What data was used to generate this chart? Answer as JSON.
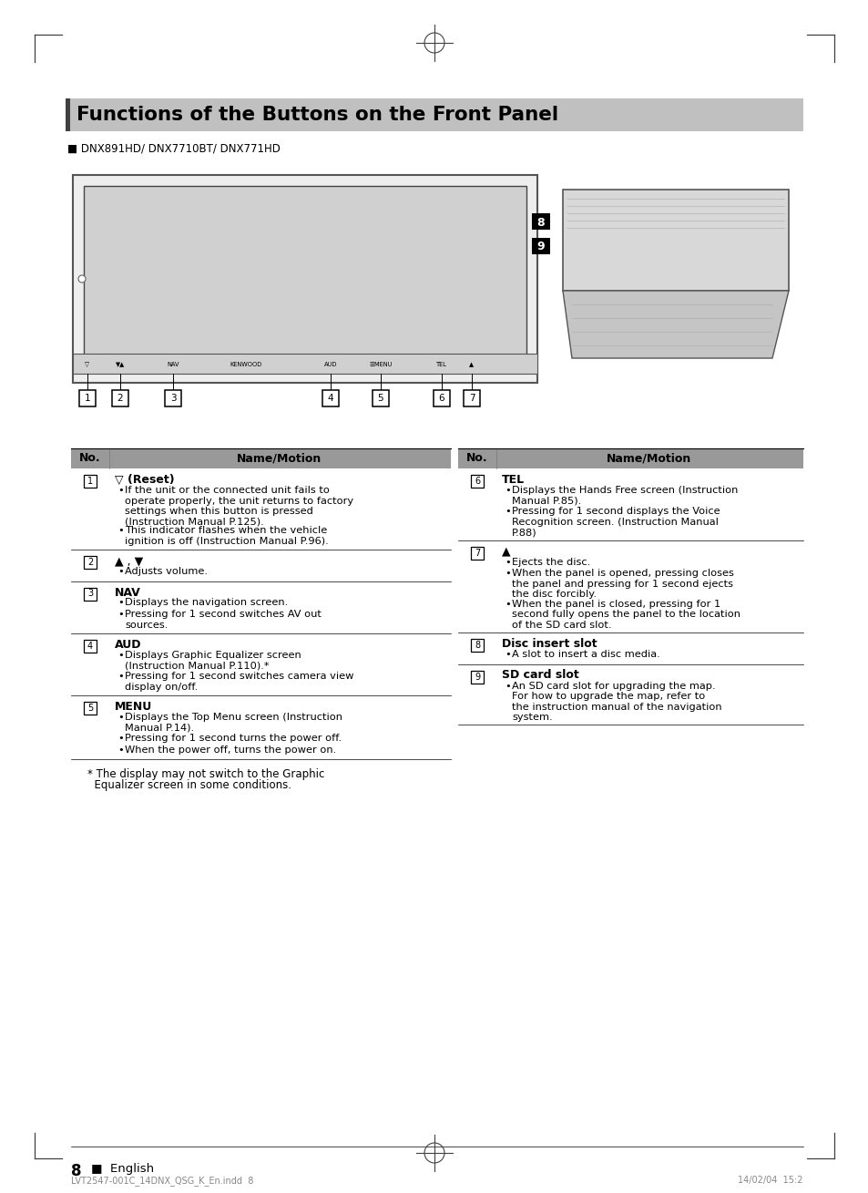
{
  "page_bg": "#ffffff",
  "title_bg": "#c0c0c0",
  "header_bg": "#999999",
  "title_text": "Functions of the Buttons on the Front Panel",
  "title_left_bar": "#404040",
  "subtitle": "■ DNX891HD/ DNX7710BT/ DNX771HD",
  "left_col_header_no": "No.",
  "left_col_header_name": "Name/Motion",
  "right_col_header_no": "No.",
  "right_col_header_name": "Name/Motion",
  "entries_left": [
    {
      "num": "1",
      "name": "▽ (Reset)",
      "name_bold": true,
      "bullets": [
        "If the unit or the connected unit fails to\noperate properly, the unit returns to factory\nsettings when this button is pressed\n(Instruction Manual P.125).",
        "This indicator flashes when the vehicle\nignition is off (Instruction Manual P.96)."
      ]
    },
    {
      "num": "2",
      "name": "▲ , ▼",
      "name_bold": false,
      "bullets": [
        "Adjusts volume."
      ]
    },
    {
      "num": "3",
      "name": "NAV",
      "name_bold": true,
      "bullets": [
        "Displays the navigation screen.",
        "Pressing for 1 second switches AV out\nsources."
      ]
    },
    {
      "num": "4",
      "name": "AUD",
      "name_bold": true,
      "bullets": [
        "Displays Graphic Equalizer screen\n(Instruction Manual P.110).*",
        "Pressing for 1 second switches camera view\ndisplay on/off."
      ]
    },
    {
      "num": "5",
      "name": "MENU",
      "name_bold": true,
      "bullets": [
        "Displays the Top Menu screen (Instruction\nManual P.14).",
        "Pressing for 1 second turns the power off.",
        "When the power off, turns the power on."
      ]
    }
  ],
  "entries_right": [
    {
      "num": "6",
      "name": "TEL",
      "name_bold": true,
      "bullets": [
        "Displays the Hands Free screen (Instruction\nManual P.85).",
        "Pressing for 1 second displays the Voice\nRecognition screen. (Instruction Manual\nP.88)"
      ]
    },
    {
      "num": "7",
      "name": "▲",
      "name_bold": false,
      "bullets": [
        "Ejects the disc.",
        "When the panel is opened, pressing closes\nthe panel and pressing for 1 second ejects\nthe disc forcibly.",
        "When the panel is closed, pressing for 1\nsecond fully opens the panel to the location\nof the SD card slot."
      ]
    },
    {
      "num": "8",
      "name": "Disc insert slot",
      "name_bold": true,
      "bullets": [
        "A slot to insert a disc media."
      ]
    },
    {
      "num": "9",
      "name": "SD card slot",
      "name_bold": true,
      "bullets": [
        "An SD card slot for upgrading the map.\nFor how to upgrade the map, refer to\nthe instruction manual of the navigation\nsystem."
      ]
    }
  ],
  "footnote": "* The display may not switch to the Graphic\n  Equalizer screen in some conditions.",
  "page_number": "8",
  "page_label": "■  English",
  "bottom_left": "LVT2547-001C_14DNX_QSG_K_En.indd  8",
  "bottom_right": "14/02/04  15:2"
}
